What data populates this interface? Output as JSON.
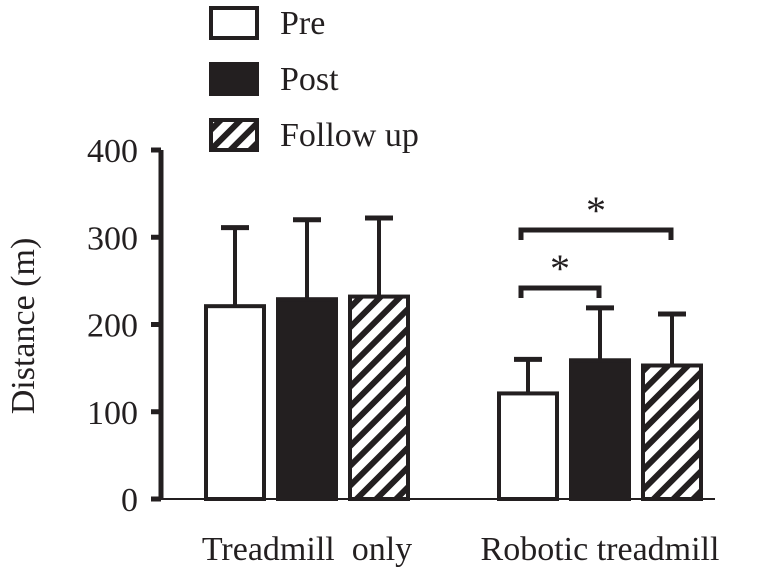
{
  "chart_data": {
    "type": "bar",
    "categories": [
      "Treadmill  only",
      "Robotic treadmill"
    ],
    "series": [
      {
        "name": "Pre",
        "values": [
          221,
          121
        ],
        "error_upper": [
          311,
          160
        ]
      },
      {
        "name": "Post",
        "values": [
          229,
          159
        ],
        "error_upper": [
          320,
          219
        ]
      },
      {
        "name": "Follow up",
        "values": [
          232,
          153
        ],
        "error_upper": [
          322,
          212
        ]
      }
    ],
    "ylabel": "Distance (m)",
    "ylim": [
      0,
      400
    ],
    "yticks": [
      "0",
      "100",
      "200",
      "300",
      "400"
    ],
    "legend_position": "top",
    "grid": false,
    "annotations": [
      {
        "category": "Robotic treadmill",
        "from": "Pre",
        "to": "Post",
        "label": "*"
      },
      {
        "category": "Robotic treadmill",
        "from": "Pre",
        "to": "Follow up",
        "label": "*"
      }
    ],
    "colors": {
      "ink": "#231f20",
      "pre": "#ffffff",
      "post": "#231f20"
    }
  }
}
